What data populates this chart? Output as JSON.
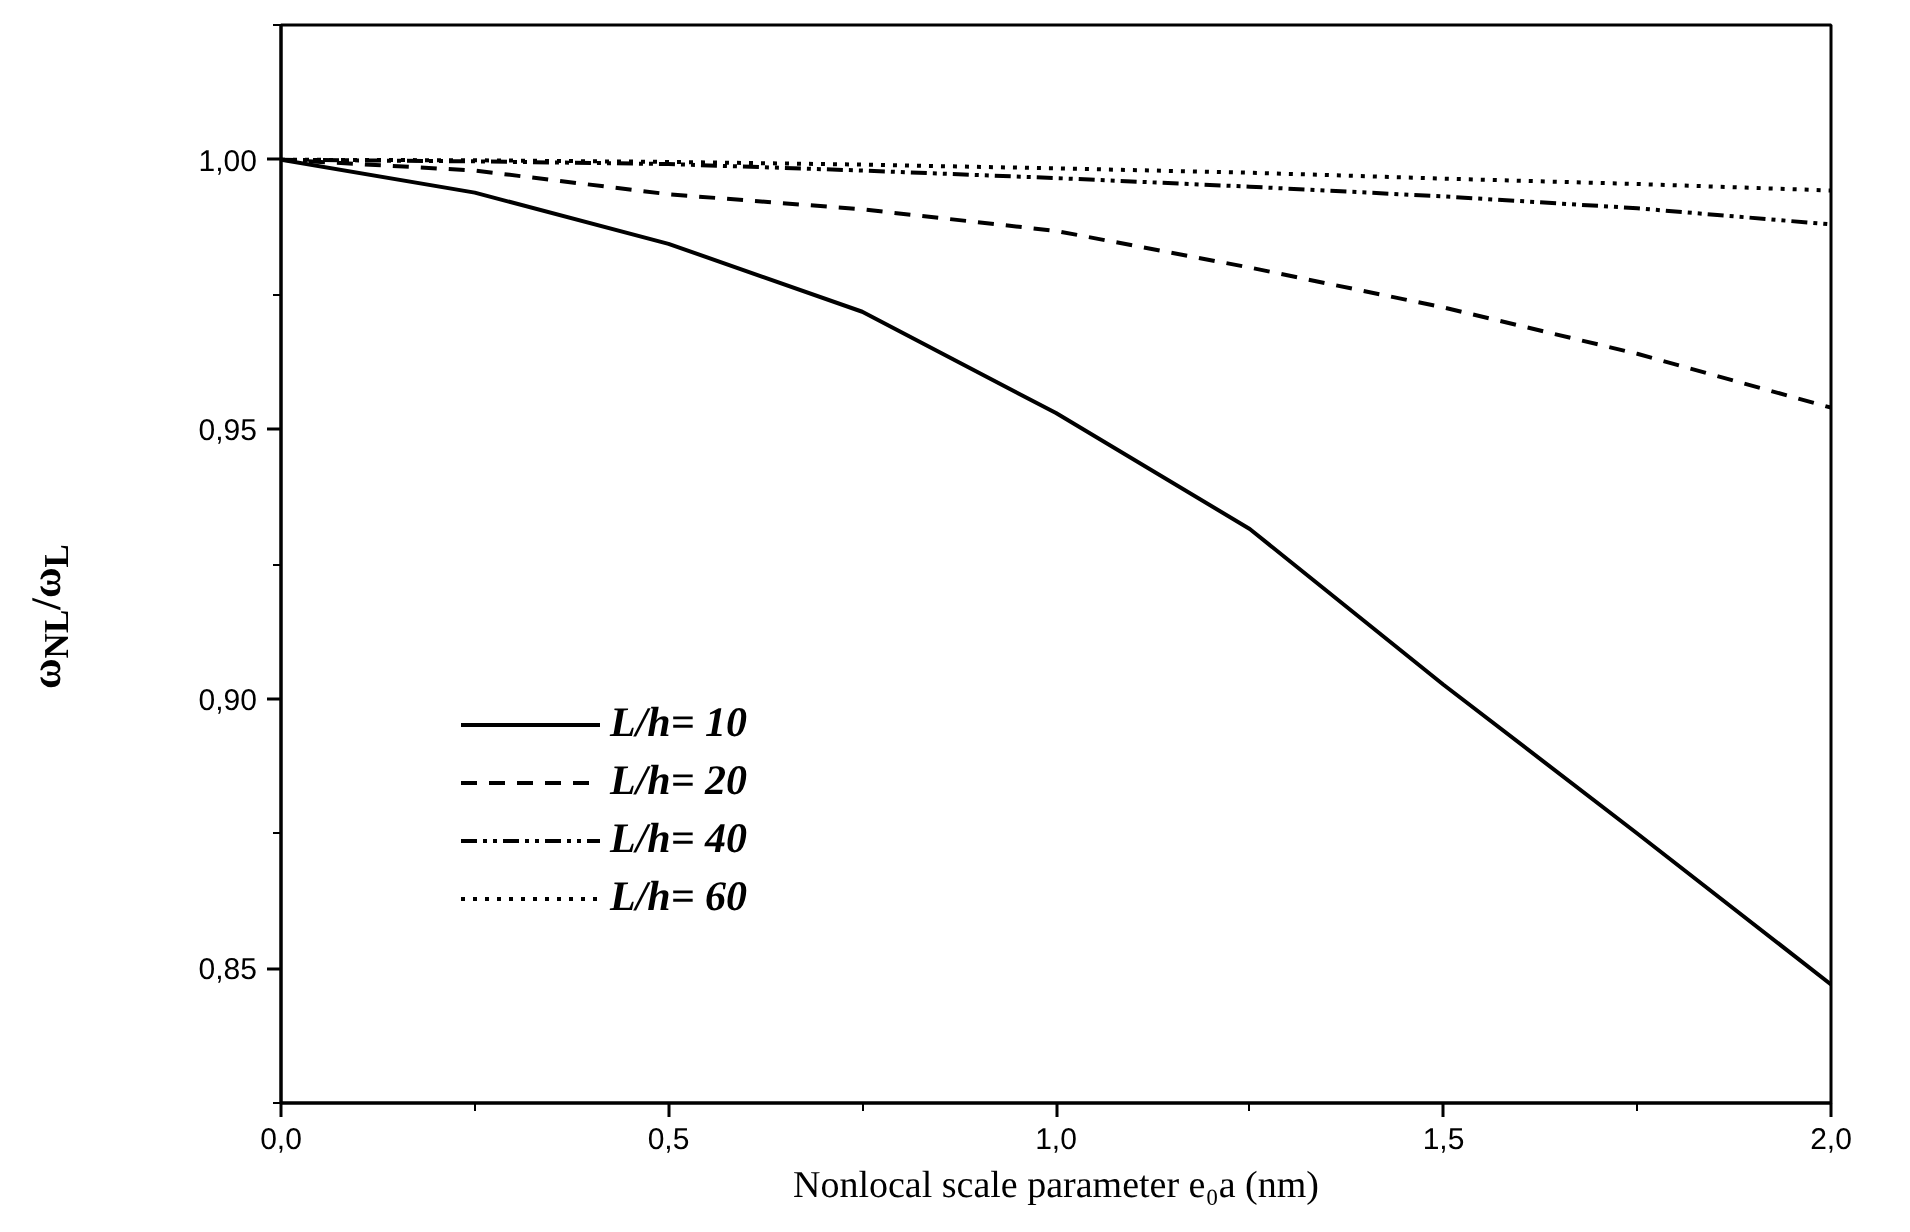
{
  "chart_data": {
    "type": "line",
    "xlabel": "Nonlocal scale parameter e₀a (nm)",
    "ylabel": "ω$_{NL}$/ω$_{L}$",
    "x": [
      0,
      0.25,
      0.5,
      0.75,
      1.0,
      1.25,
      1.5,
      1.75,
      2.0
    ],
    "xlim": [
      0,
      2
    ],
    "ylim": [
      0.825,
      1.025
    ],
    "xticks": [
      {
        "value": 0,
        "label": "0,0"
      },
      {
        "value": 0.5,
        "label": "0,5"
      },
      {
        "value": 1,
        "label": "1,0"
      },
      {
        "value": 1.5,
        "label": "1,5"
      },
      {
        "value": 2,
        "label": "2,0"
      }
    ],
    "yticks": [
      {
        "value": 0.85,
        "label": "0,85"
      },
      {
        "value": 0.9,
        "label": "0,90"
      },
      {
        "value": 0.95,
        "label": "0,95"
      },
      {
        "value": 1.0,
        "label": "1,00"
      }
    ],
    "grid": false,
    "legend": "bottom left",
    "marker": "none",
    "series": [
      {
        "name": "L/h= 10",
        "color": "#000000",
        "line_style": "solid",
        "values": [
          1.0,
          0.9939,
          0.9844,
          0.9718,
          0.953,
          0.9315,
          0.9026,
          0.875,
          0.847
        ]
      },
      {
        "name": "L/h= 20",
        "color": "#000000",
        "line_style": "dashed",
        "values": [
          1.0,
          0.998,
          0.9936,
          0.9908,
          0.9868,
          0.98,
          0.9726,
          0.964,
          0.954
        ]
      },
      {
        "name": "L/h= 40",
        "color": "#000000",
        "line_style": "dashdotdot",
        "values": [
          1.0,
          0.9997,
          0.9992,
          0.998,
          0.9966,
          0.995,
          0.9932,
          0.991,
          0.988
        ]
      },
      {
        "name": "L/h= 60",
        "color": "#000000",
        "line_style": "dotted",
        "values": [
          1.0,
          0.9999,
          0.9996,
          0.9991,
          0.9984,
          0.9976,
          0.9965,
          0.9955,
          0.9943
        ]
      }
    ]
  }
}
